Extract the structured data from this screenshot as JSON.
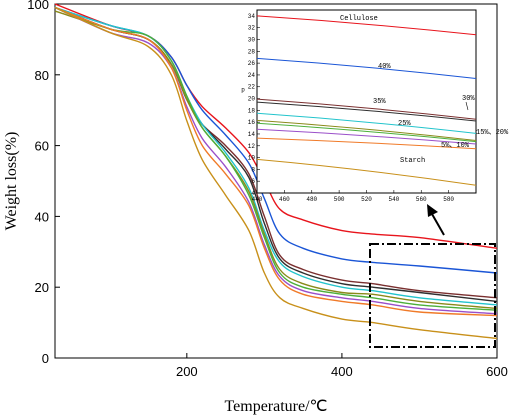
{
  "chart_data": [
    {
      "type": "line",
      "xlabel": "Temperature/℃",
      "ylabel": "Weight loss(%)",
      "xlim": [
        30,
        600
      ],
      "ylim": [
        0,
        100
      ],
      "xticks": [
        200,
        400,
        600
      ],
      "yticks": [
        0,
        20,
        40,
        60,
        80,
        100
      ],
      "x": [
        30,
        100,
        150,
        180,
        200,
        220,
        250,
        280,
        300,
        320,
        350,
        400,
        440,
        500,
        600
      ],
      "series": [
        {
          "color": "#e8141c",
          "values": [
            100,
            94,
            91,
            85,
            77,
            71,
            65,
            58,
            50,
            42,
            39,
            36,
            35,
            34,
            31
          ]
        },
        {
          "color": "#1a55d6",
          "values": [
            99,
            94,
            91,
            85,
            77,
            70,
            63,
            55,
            45,
            35,
            31,
            28,
            27,
            26,
            24
          ]
        },
        {
          "color": "#7a2f2f",
          "values": [
            99,
            93,
            90,
            83,
            73,
            66,
            60,
            52,
            40,
            29,
            25,
            22,
            21,
            19,
            17
          ]
        },
        {
          "color": "#2f2f2f",
          "values": [
            99,
            93,
            90,
            83,
            73,
            66,
            59,
            51,
            38,
            28,
            24,
            21,
            20,
            18.5,
            16
          ]
        },
        {
          "color": "#22c4cc",
          "values": [
            99,
            94,
            91,
            84,
            74,
            66,
            58,
            48,
            36,
            27,
            23,
            20,
            19,
            17,
            15
          ]
        },
        {
          "color": "#8a8a1a",
          "values": [
            98,
            93,
            90,
            83,
            73,
            65,
            57,
            47,
            35,
            25,
            21,
            18.5,
            18,
            16,
            14
          ]
        },
        {
          "color": "#4caf3a",
          "values": [
            99,
            93,
            91,
            84,
            74,
            65,
            57,
            46,
            34,
            24,
            20,
            18,
            17,
            15,
            13.5
          ]
        },
        {
          "color": "#9a4fc9",
          "values": [
            99,
            92,
            89,
            82,
            71,
            62,
            54,
            44,
            32,
            23,
            19,
            17,
            16,
            14,
            12.5
          ]
        },
        {
          "color": "#f07a28",
          "values": [
            99,
            93,
            90,
            82,
            70,
            60,
            52,
            43,
            31,
            22,
            18,
            16,
            15,
            13,
            12
          ]
        },
        {
          "color": "#c8901a",
          "values": [
            99,
            92,
            88,
            80,
            67,
            56,
            46,
            36,
            24,
            17,
            14,
            11,
            10,
            8,
            5.5
          ]
        }
      ]
    },
    {
      "type": "line",
      "inset": true,
      "xlim": [
        440,
        600
      ],
      "ylim": [
        4,
        35
      ],
      "xticks": [
        440,
        460,
        480,
        500,
        520,
        540,
        560,
        580
      ],
      "yticks": [
        4,
        6,
        8,
        10,
        12,
        14,
        16,
        18,
        20,
        22,
        24,
        26,
        28,
        30,
        32,
        34
      ],
      "ylabel": "p",
      "x": [
        440,
        600
      ],
      "series": [
        {
          "name": "Cellulose",
          "color": "#e8141c",
          "values": [
            34,
            30.8
          ]
        },
        {
          "name": "40%",
          "color": "#1a55d6",
          "values": [
            26.8,
            23.4
          ]
        },
        {
          "name": "35%",
          "color": "#7a2f2f",
          "values": [
            19.9,
            16.5
          ]
        },
        {
          "name": "30%",
          "color": "#2f2f2f",
          "values": [
            19.4,
            16.2
          ]
        },
        {
          "name": "25%",
          "color": "#22c4cc",
          "values": [
            17.5,
            14.1
          ]
        },
        {
          "name": "",
          "color": "#8a8a1a",
          "values": [
            16.3,
            12.9
          ]
        },
        {
          "name": "15%、20%",
          "color": "#4caf3a",
          "values": [
            15.8,
            12.7
          ]
        },
        {
          "name": "5%、10%",
          "color": "#9a4fc9",
          "values": [
            14.8,
            12.3
          ]
        },
        {
          "name": "",
          "color": "#f07a28",
          "values": [
            13.3,
            11.5
          ]
        },
        {
          "name": "Starch",
          "color": "#c8901a",
          "values": [
            9.7,
            5.3
          ]
        }
      ]
    }
  ]
}
